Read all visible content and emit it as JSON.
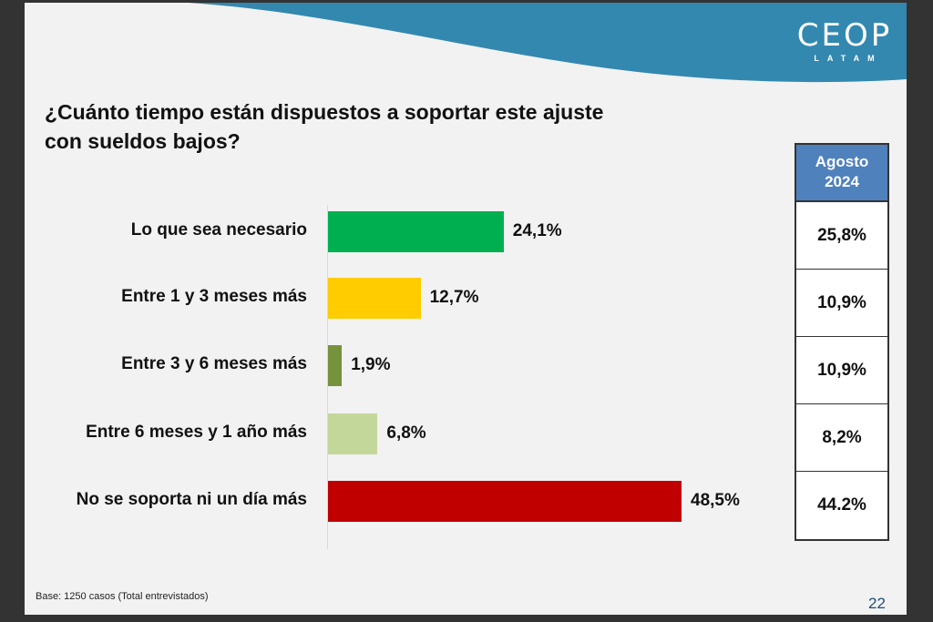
{
  "slide": {
    "logo": {
      "main": "CEOP",
      "sub": "LATAM"
    },
    "title_line1": "¿Cuánto tiempo están dispuestos a soportar este ajuste",
    "title_line2": "con sueldos bajos?",
    "footnote": "Base:  1250 casos (Total entrevistados)",
    "page_number": "22",
    "colors": {
      "banner": "#3388b0",
      "background": "#f2f2f2",
      "frame": "#333333",
      "table_header": "#4f81bd"
    }
  },
  "chart_data": {
    "type": "bar",
    "orientation": "horizontal",
    "title": "¿Cuánto tiempo están dispuestos a soportar este ajuste con sueldos bajos?",
    "xlabel": "",
    "ylabel": "",
    "xlim": [
      0,
      50
    ],
    "grid": false,
    "categories": [
      "Lo que sea necesario",
      "Entre 1 y 3 meses más",
      "Entre 3 y 6 meses más",
      "Entre 6 meses y 1 año más",
      "No se soporta ni un día más"
    ],
    "values": [
      24.1,
      12.7,
      1.9,
      6.8,
      48.5
    ],
    "value_labels": [
      "24,1%",
      "12,7%",
      "1,9%",
      "6,8%",
      "48,5%"
    ],
    "bar_colors": [
      "#00b050",
      "#ffcc00",
      "#76923c",
      "#c4d79b",
      "#c00000"
    ],
    "comparison_table": {
      "header_line1": "Agosto",
      "header_line2": "2024",
      "values": [
        "25,8%",
        "10,9%",
        "10,9%",
        "8,2%",
        "44.2%"
      ]
    }
  }
}
